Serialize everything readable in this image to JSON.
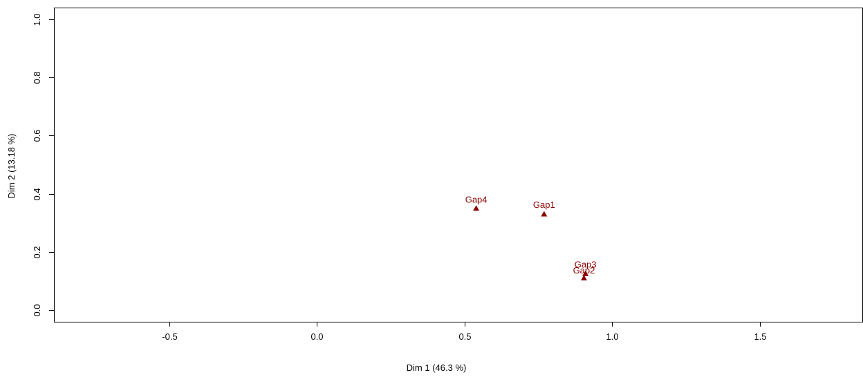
{
  "chart_data": {
    "type": "scatter",
    "title": "",
    "xlabel": "Dim 1 (46.3 %)",
    "ylabel": "Dim 2 (13.18 %)",
    "xlim": [
      -0.89,
      1.85
    ],
    "ylim": [
      -0.04,
      1.04
    ],
    "x_ticks": [
      -0.5,
      0.0,
      0.5,
      1.0,
      1.5
    ],
    "x_tick_labels": [
      "-0.5",
      "0.0",
      "0.5",
      "1.0",
      "1.5"
    ],
    "y_ticks": [
      0.0,
      0.2,
      0.4,
      0.6,
      0.8,
      1.0
    ],
    "y_tick_labels": [
      "0.0",
      "0.2",
      "0.4",
      "0.6",
      "0.8",
      "1.0"
    ],
    "grid": false,
    "marker": "triangle",
    "color": "#8b0000",
    "points": [
      {
        "label": "Gap1",
        "x": 0.77,
        "y": 0.33
      },
      {
        "label": "Gap2",
        "x": 0.905,
        "y": 0.11
      },
      {
        "label": "Gap3",
        "x": 0.91,
        "y": 0.125
      },
      {
        "label": "Gap4",
        "x": 0.54,
        "y": 0.35
      }
    ]
  }
}
